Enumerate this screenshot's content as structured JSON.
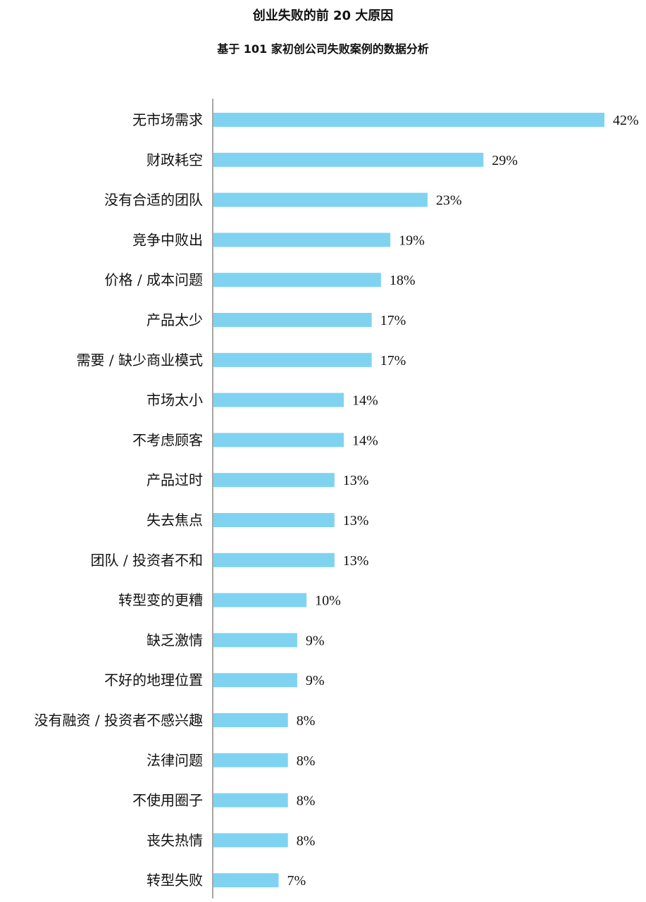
{
  "chart_data": {
    "type": "bar",
    "orientation": "horizontal",
    "title": "创业失败的前 20 大原因",
    "subtitle": "基于 101 家初创公司失败案例的数据分析",
    "categories": [
      "无市场需求",
      "财政耗空",
      "没有合适的团队",
      "竞争中败出",
      "价格 / 成本问题",
      "产品太少",
      "需要 / 缺少商业模式",
      "市场太小",
      "不考虑顾客",
      "产品过时",
      "失去焦点",
      "团队 / 投资者不和",
      "转型变的更糟",
      "缺乏激情",
      "不好的地理位置",
      "没有融资 / 投资者不感兴趣",
      "法律问题",
      "不使用圈子",
      "丧失热情",
      "转型失败"
    ],
    "values": [
      42,
      29,
      23,
      19,
      18,
      17,
      17,
      14,
      14,
      13,
      13,
      13,
      10,
      9,
      9,
      8,
      8,
      8,
      8,
      7
    ],
    "value_labels": [
      "42%",
      "29%",
      "23%",
      "19%",
      "18%",
      "17%",
      "17%",
      "14%",
      "14%",
      "13%",
      "13%",
      "13%",
      "10%",
      "9%",
      "9%",
      "8%",
      "8%",
      "8%",
      "8%",
      "7%"
    ],
    "xlim": [
      0,
      42
    ],
    "grid": false,
    "bar_color": "#7fd3f1",
    "axis_color": "#888888"
  }
}
